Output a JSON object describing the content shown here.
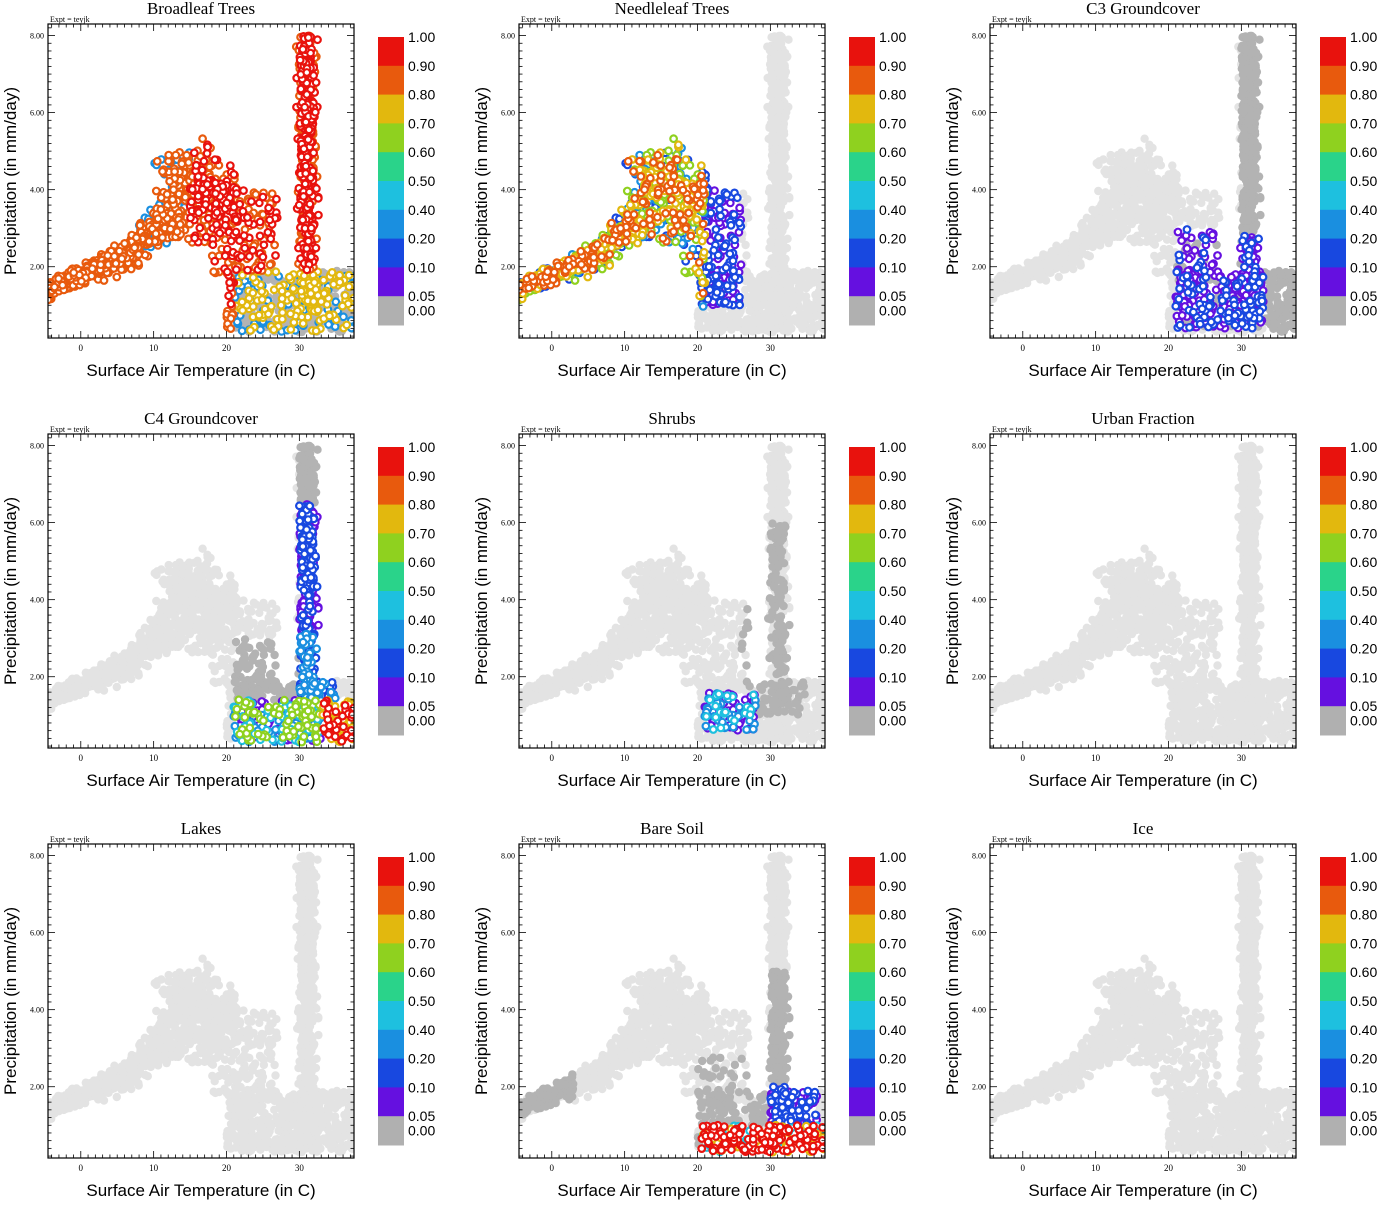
{
  "chart_data": {
    "type": "scatter",
    "expt_label": "Expt = teyjk",
    "xlabel": "Surface Air Temperature (in C)",
    "ylabel": "Precipitation (in mm/day)",
    "xlim": [
      -4.5,
      37.5
    ],
    "ylim": [
      0.15,
      8.3
    ],
    "x_ticks": [
      "0",
      "10",
      "20",
      "30"
    ],
    "x_tick_values": [
      0,
      10,
      20,
      30
    ],
    "y_ticks": [
      "2.00",
      "4.00",
      "6.00",
      "8.00"
    ],
    "y_tick_values": [
      2,
      4,
      6,
      8
    ],
    "colorbar": {
      "labels": [
        "1.00",
        "0.90",
        "0.80",
        "0.70",
        "0.60",
        "0.50",
        "0.40",
        "0.20",
        "0.10",
        "0.05",
        "0.00"
      ],
      "colors": [
        "#e8120d",
        "#e85a0d",
        "#e2b80e",
        "#8fd11f",
        "#2ad38a",
        "#1ec0df",
        "#1a8fe0",
        "#1848e0",
        "#6510e0",
        "#b0b0b0"
      ]
    },
    "background_color": "#e3e3e3",
    "zero_color": "#b3b3b3",
    "panels": [
      {
        "title": "Broadleaf Trees",
        "pft": "broadleaf"
      },
      {
        "title": "Needleleaf Trees",
        "pft": "needleleaf"
      },
      {
        "title": "C3 Groundcover",
        "pft": "c3"
      },
      {
        "title": "C4 Groundcover",
        "pft": "c4"
      },
      {
        "title": "Shrubs",
        "pft": "shrubs"
      },
      {
        "title": "Urban Fraction",
        "pft": "urban"
      },
      {
        "title": "Lakes",
        "pft": "lakes"
      },
      {
        "title": "Bare Soil",
        "pft": "bare"
      },
      {
        "title": "Ice",
        "pft": "ice"
      }
    ]
  }
}
